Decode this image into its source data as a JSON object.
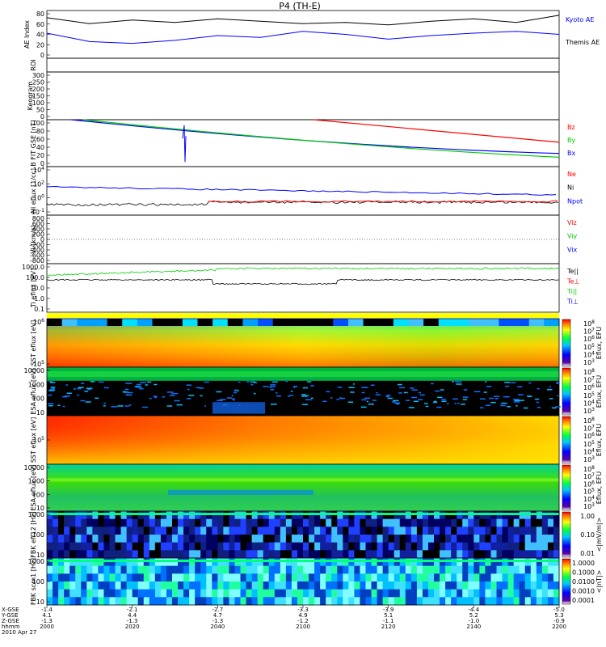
{
  "title": "P4 (TH-E)",
  "colors": {
    "black": "#000000",
    "blue": "#0000ff",
    "red": "#ff0000",
    "green": "#00cc00",
    "yellow": "#ffff00"
  },
  "date_label": "2010 Apr 27",
  "footer": {
    "row_labels": [
      "X-GSE",
      "Y-GSE",
      "Z-GSE",
      "hhmm"
    ],
    "columns": [
      {
        "x": "-1.4",
        "y": "4.1",
        "z": "-1.3",
        "t": "2000"
      },
      {
        "x": "-2.1",
        "y": "4.4",
        "z": "-1.3",
        "t": "2020"
      },
      {
        "x": "-2.7",
        "y": "4.7",
        "z": "-1.3",
        "t": "2040"
      },
      {
        "x": "-3.3",
        "y": "4.9",
        "z": "-1.2",
        "t": "2100"
      },
      {
        "x": "-3.9",
        "y": "5.1",
        "z": "-1.1",
        "t": "2120"
      },
      {
        "x": "-4.4",
        "y": "5.2",
        "z": "-1.0",
        "t": "2140"
      },
      {
        "x": "-5.0",
        "y": "5.3",
        "z": "-0.9",
        "t": "2200"
      }
    ]
  },
  "chart_data": [
    {
      "type": "line",
      "panel": "ae",
      "ylabel": "AE Index",
      "ylim": [
        0,
        80
      ],
      "yticks": [
        "80",
        "60",
        "40",
        "20",
        "0"
      ],
      "series": [
        {
          "name": "Kyoto AE",
          "color": "#0000ff",
          "side_label": "Kyoto AE"
        },
        {
          "name": "Themis AE",
          "color": "#000000",
          "side_label": "Themis AE"
        }
      ],
      "x": [
        2000,
        2010,
        2020,
        2030,
        2040,
        2050,
        2100,
        2110,
        2120,
        2130,
        2140,
        2150,
        2200
      ],
      "themis": [
        68,
        58,
        64,
        60,
        66,
        62,
        58,
        60,
        56,
        62,
        66,
        60,
        72
      ],
      "kyoto": [
        42,
        28,
        25,
        30,
        38,
        35,
        45,
        40,
        32,
        38,
        42,
        45,
        40
      ]
    },
    {
      "type": "line",
      "panel": "roi",
      "ylabel": "ROI",
      "yticks": []
    },
    {
      "type": "heatmap",
      "panel": "keogram",
      "ylabel": "Keogram",
      "ylim": [
        0,
        300
      ],
      "yticks": [
        "300",
        "250",
        "200",
        "150",
        "100",
        "50",
        "0"
      ]
    },
    {
      "type": "line",
      "panel": "bfield",
      "ylabel": "B FIT GSE [nT]",
      "ylim": [
        0,
        100
      ],
      "yticks": [
        "100",
        "80",
        "60",
        "40",
        "20",
        "0"
      ],
      "legend": [
        {
          "label": "Bz",
          "color": "#ff0000"
        },
        {
          "label": "By",
          "color": "#00cc00"
        },
        {
          "label": "Bx",
          "color": "#0000ff"
        }
      ]
    },
    {
      "type": "line",
      "panel": "density",
      "ylabel": "Ni eflux [1/cc]",
      "yticks": [
        "10^4",
        "10^2",
        "10^0",
        "10^-1"
      ],
      "legend": [
        {
          "label": "Ne",
          "color": "#ff0000"
        },
        {
          "label": "Ni",
          "color": "#000000"
        },
        {
          "label": "Npot",
          "color": "#0000ff"
        }
      ]
    },
    {
      "type": "line",
      "panel": "velocity",
      "ylabel": "Vi [km/s]",
      "ylim": [
        -800,
        800
      ],
      "yticks": [
        "800",
        "600",
        "400",
        "200",
        "0",
        "-200",
        "-400",
        "-600",
        "-800"
      ],
      "legend": [
        {
          "label": "Viz",
          "color": "#ff0000"
        },
        {
          "label": "Viy",
          "color": "#00cc00"
        },
        {
          "label": "Vix",
          "color": "#0000ff"
        }
      ]
    },
    {
      "type": "line",
      "panel": "temperature",
      "ylabel": "Ti eflux [eV]",
      "yticks": [
        "1000.0",
        "100.0",
        "10.0",
        "1.0",
        "0.1"
      ],
      "legend": [
        {
          "label": "Te||",
          "color": "#000000"
        },
        {
          "label": "Te⊥",
          "color": "#ff0000"
        },
        {
          "label": "Ti||",
          "color": "#00cc00"
        },
        {
          "label": "Ti⊥",
          "color": "#0000ff"
        }
      ]
    },
    {
      "type": "heatmap",
      "panel": "sst_e",
      "ylabel": "SST eflux [eV]",
      "yticks": [
        "10^6",
        "10^5"
      ],
      "cbar_label": "Eflux, EFU",
      "cbar_ticks": [
        "10^8",
        "10^7",
        "10^6",
        "10^5",
        "10^4",
        "10^3"
      ]
    },
    {
      "type": "heatmap",
      "panel": "esa_e",
      "ylabel": "ESA eflux [eV]",
      "yticks": [
        "10000",
        "1000",
        "100",
        "10"
      ],
      "cbar_label": "Eflux, EFU",
      "cbar_ticks": [
        "10^8",
        "10^7",
        "10^6",
        "10^5",
        "10^4",
        "10^3"
      ]
    },
    {
      "type": "heatmap",
      "panel": "sst_i",
      "ylabel": "SST eflux [eV]",
      "yticks": [
        "10^5"
      ],
      "cbar_label": "Eflux, EFU",
      "cbar_ticks": [
        "10^8",
        "10^7",
        "10^6",
        "10^5",
        "10^4",
        "10^3"
      ]
    },
    {
      "type": "heatmap",
      "panel": "esa_i",
      "ylabel": "ESA eflux [eV]",
      "yticks": [
        "10000",
        "1000",
        "100",
        "10"
      ],
      "cbar_label": "Eflux, EFU",
      "cbar_ticks": [
        "10^8",
        "10^7",
        "10^6",
        "10^5",
        "10^4",
        "10^3"
      ]
    },
    {
      "type": "heatmap",
      "panel": "fbk_e",
      "ylabel": "FBK eff12 [Hz]",
      "yticks": [
        "1000",
        "100",
        "10"
      ],
      "cbar_label": "<|mV/m|>",
      "cbar_ticks": [
        "1.00",
        "0.10",
        "0.01"
      ]
    },
    {
      "type": "heatmap",
      "panel": "fbk_b",
      "ylabel": "FBK scm1 [Hz]",
      "yticks": [
        "1000",
        "100",
        "10"
      ],
      "cbar_label": "<|nT|>",
      "cbar_ticks": [
        "1.0000",
        "0.1000",
        "0.0100",
        "0.0010",
        "0.0001"
      ]
    }
  ]
}
